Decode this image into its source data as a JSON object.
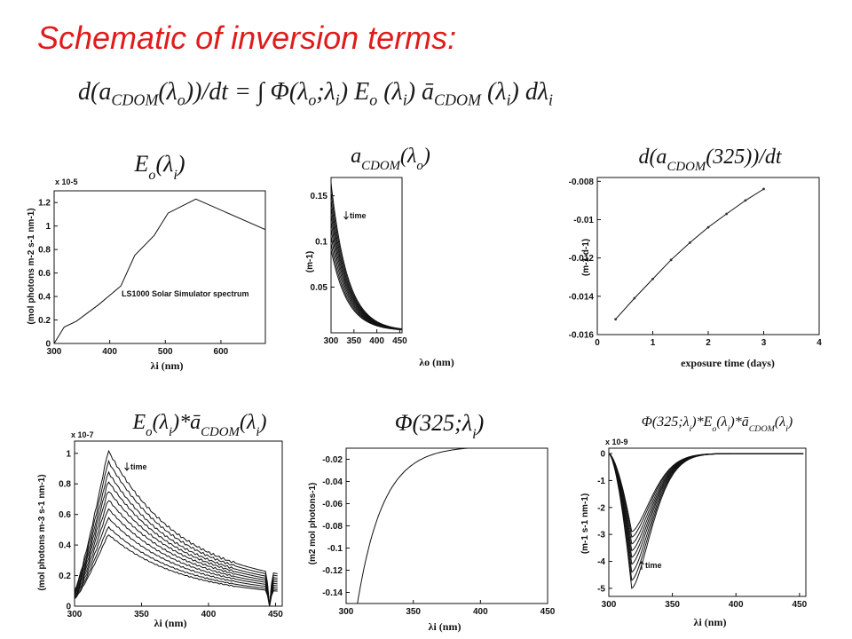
{
  "slide": {
    "title": "Schematic of inversion terms:",
    "equation": "d(aCDOM(λo))/dt = ∫ Φ(λo;λi) Eo (λi) āCDOM (λi) dλi"
  },
  "colors": {
    "title": "#e01b1b",
    "line": "#111111",
    "marker": "#555555"
  },
  "chart_data": [
    {
      "id": "p1",
      "type": "line",
      "title": "Eo(λi)",
      "xlabel": "λi (nm)",
      "ylabel": "(mol photons m-2 s-1 nm-1)",
      "exponent": "x 10-5",
      "xlim": [
        300,
        680
      ],
      "ylim": [
        0,
        1.3e-05
      ],
      "xticks": [
        300,
        400,
        500,
        600
      ],
      "yticks": [
        0,
        0.2,
        0.4,
        0.6,
        0.8,
        1,
        1.2
      ],
      "annotation": "LS1000 Solar Simulator spectrum",
      "series": [
        {
          "x": [
            300,
            318,
            340,
            380,
            420,
            445,
            480,
            505,
            555,
            680
          ],
          "y": [
            0,
            1.4e-06,
            1.9e-06,
            3.3e-06,
            4.9e-06,
            7.5e-06,
            9.2e-06,
            1.11e-05,
            1.23e-05,
            9.7e-06
          ]
        }
      ]
    },
    {
      "id": "p2",
      "type": "line",
      "title": "aCDOM(λo)",
      "xlabel": "λo (nm)",
      "ylabel": "(m-1)",
      "annotation": "time",
      "xlim": [
        300,
        455
      ],
      "ylim": [
        0,
        0.17
      ],
      "xticks": [
        300,
        350,
        400,
        450
      ],
      "yticks": [
        0.05,
        0.1,
        0.15
      ],
      "series_model": {
        "form": "y = a300 * exp(-0.0275 * (x - 300)) + 0.002",
        "x_range": [
          300,
          455
        ],
        "a300": [
          0.162,
          0.153,
          0.144,
          0.136,
          0.128,
          0.12,
          0.112,
          0.104,
          0.096,
          0.089
        ]
      }
    },
    {
      "id": "p3",
      "type": "line",
      "title": "d(aCDOM(325))/dt",
      "xlabel": "exposure time (days)",
      "ylabel": "(m-1 d-1)",
      "xlim": [
        0,
        4
      ],
      "ylim": [
        -0.016,
        -0.0078
      ],
      "xticks": [
        0,
        1,
        2,
        3,
        4
      ],
      "yticks": [
        -0.016,
        -0.014,
        -0.012,
        -0.01,
        -0.008
      ],
      "series": [
        {
          "x": [
            0.33,
            0.67,
            1.0,
            1.33,
            1.67,
            2.0,
            2.33,
            2.67,
            3.0
          ],
          "y": [
            -0.0152,
            -0.0141,
            -0.0131,
            -0.0121,
            -0.0112,
            -0.0104,
            -0.0097,
            -0.009,
            -0.0084
          ]
        }
      ]
    },
    {
      "id": "p4",
      "type": "line",
      "title": "Eo(λi)*āCDOM(λi)",
      "xlabel": "λi (nm)",
      "ylabel": "(mol photons m-3 s-1 nm-1)",
      "exponent": "x 10-7",
      "annotation": "time",
      "xlim": [
        300,
        455
      ],
      "ylim": [
        0,
        1.08e-07
      ],
      "xticks": [
        300,
        350,
        400,
        450
      ],
      "yticks": [
        0,
        0.2,
        0.4,
        0.6,
        0.8,
        1
      ],
      "series_model": {
        "form": "y = peak * shape(x)",
        "peak_x": 325,
        "peaks": [
          1.02e-07,
          9.5e-08,
          8.8e-08,
          8.2e-08,
          7.6e-08,
          7e-08,
          6.4e-08,
          5.8e-08,
          5.2e-08,
          4.7e-08
        ]
      }
    },
    {
      "id": "p5",
      "type": "line",
      "title": "Φ(325;λi)",
      "xlabel": "λi (nm)",
      "ylabel": "(m2 mol photons-1)",
      "xlim": [
        300,
        450
      ],
      "ylim": [
        -0.15,
        -0.01
      ],
      "xticks": [
        300,
        350,
        400,
        450
      ],
      "yticks": [
        -0.02,
        -0.04,
        -0.06,
        -0.08,
        -0.1,
        -0.12,
        -0.14
      ],
      "series_model": {
        "form": "y = -0.008 - 0.22 * exp(-0.052 * (x - 300))",
        "x_range": [
          306,
          450
        ]
      }
    },
    {
      "id": "p6",
      "type": "line",
      "title": "Φ(325;λi)*Eo(λi)*āCDOM(λi)",
      "xlabel": "λi (nm)",
      "ylabel": "(m-1 s-1 nm-1)",
      "exponent": "x 10-9",
      "annotation": "time",
      "xlim": [
        300,
        455
      ],
      "ylim": [
        -5.3e-09,
        2e-10
      ],
      "xticks": [
        300,
        350,
        400,
        450
      ],
      "yticks": [
        0,
        -1,
        -2,
        -3,
        -4,
        -5
      ],
      "series_model": {
        "form": "y = -depth * dip(x)",
        "dip_x": 318,
        "depths": [
          5e-09,
          4.7e-09,
          4.4e-09,
          4.1e-09,
          3.85e-09,
          3.6e-09,
          3.35e-09,
          3.1e-09,
          2.9e-09
        ]
      }
    }
  ]
}
